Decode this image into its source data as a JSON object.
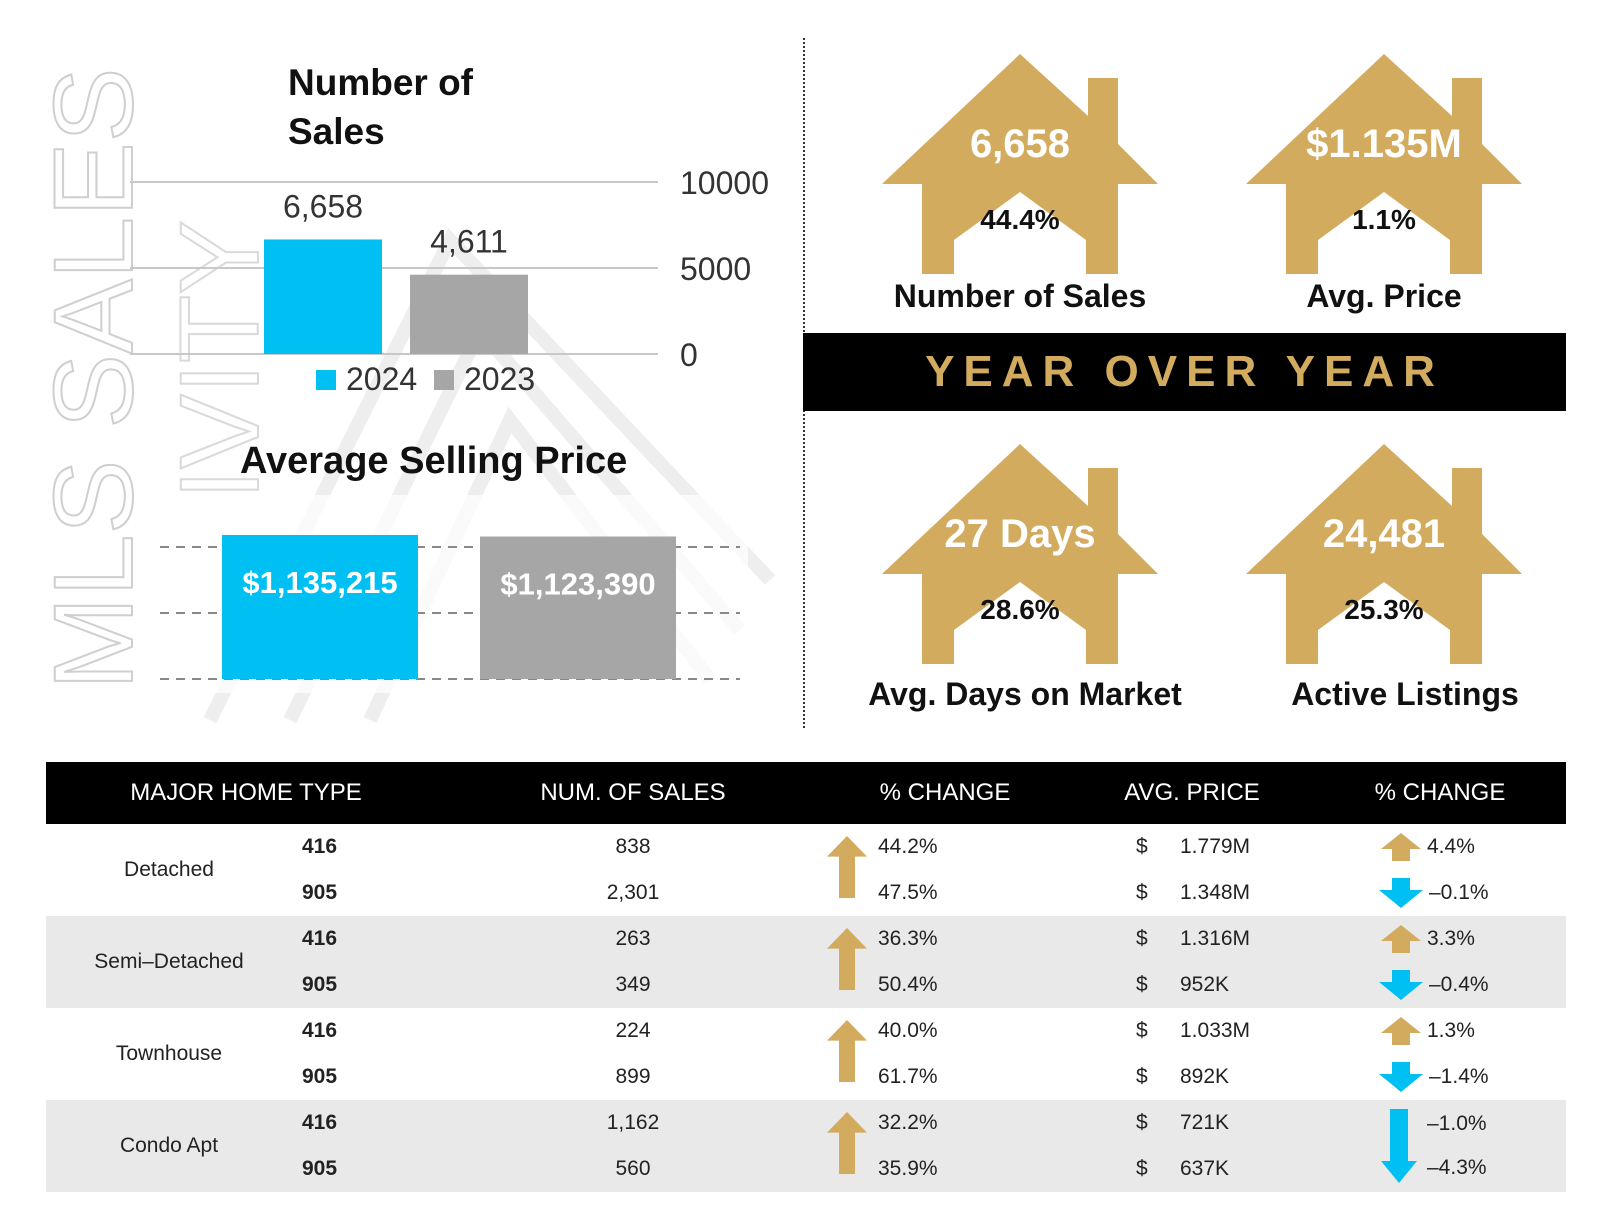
{
  "watermark": {
    "text": "MLS SALES",
    "subtext": "IVITY"
  },
  "chart_data": [
    {
      "type": "bar",
      "title": "Number of Sales",
      "categories": [
        "2024",
        "2023"
      ],
      "values": [
        6658,
        4611
      ],
      "data_labels": [
        "6,658",
        "4,611"
      ],
      "ylim": [
        0,
        10000
      ],
      "yticks": [
        "0",
        "5000",
        "10000"
      ],
      "legend": [
        "2024",
        "2023"
      ],
      "legend_position": "bottom",
      "grid": true,
      "colors": [
        "#00bff3",
        "#a6a6a6"
      ]
    },
    {
      "type": "bar",
      "title": "Average Selling Price",
      "categories": [
        "2024",
        "2023"
      ],
      "values": [
        1135215,
        1123390
      ],
      "data_labels": [
        "$1,135,215",
        "$1,123,390"
      ],
      "grid": true,
      "colors": [
        "#00bff3",
        "#a6a6a6"
      ]
    }
  ],
  "banner": "YEAR OVER YEAR",
  "colors": {
    "gold": "#d2ab5e",
    "cyan": "#00bff3",
    "gray": "#a6a6a6"
  },
  "houses": [
    {
      "value": "6,658",
      "pct": "44.4%",
      "label": "Number of Sales"
    },
    {
      "value": "$1.135M",
      "pct": "1.1%",
      "label": "Avg. Price"
    },
    {
      "value": "27 Days",
      "pct": "28.6%",
      "label": "Avg. Days on Market"
    },
    {
      "value": "24,481",
      "pct": "25.3%",
      "label": "Active Listings"
    }
  ],
  "table": {
    "headers": [
      "MAJOR HOME TYPE",
      "NUM. OF SALES",
      "% CHANGE",
      "AVG. PRICE",
      "% CHANGE"
    ],
    "currency": "$",
    "groups": [
      {
        "type": "Detached",
        "sales_dir": "up",
        "rows": [
          {
            "region": "416",
            "sales": "838",
            "sales_change": "44.2%",
            "price": "1.779M",
            "price_change": "4.4%",
            "price_dir": "up"
          },
          {
            "region": "905",
            "sales": "2,301",
            "sales_change": "47.5%",
            "price": "1.348M",
            "price_change": "–0.1%",
            "price_dir": "down"
          }
        ]
      },
      {
        "type": "Semi–Detached",
        "sales_dir": "up",
        "rows": [
          {
            "region": "416",
            "sales": "263",
            "sales_change": "36.3%",
            "price": "1.316M",
            "price_change": "3.3%",
            "price_dir": "up"
          },
          {
            "region": "905",
            "sales": "349",
            "sales_change": "50.4%",
            "price": "952K",
            "price_change": "–0.4%",
            "price_dir": "down"
          }
        ]
      },
      {
        "type": "Townhouse",
        "sales_dir": "up",
        "rows": [
          {
            "region": "416",
            "sales": "224",
            "sales_change": "40.0%",
            "price": "1.033M",
            "price_change": "1.3%",
            "price_dir": "up"
          },
          {
            "region": "905",
            "sales": "899",
            "sales_change": "61.7%",
            "price": "892K",
            "price_change": "–1.4%",
            "price_dir": "down"
          }
        ]
      },
      {
        "type": "Condo Apt",
        "sales_dir": "up",
        "price_dir_group": "down",
        "rows": [
          {
            "region": "416",
            "sales": "1,162",
            "sales_change": "32.2%",
            "price": "721K",
            "price_change": "–1.0%",
            "price_dir": "group-down"
          },
          {
            "region": "905",
            "sales": "560",
            "sales_change": "35.9%",
            "price": "637K",
            "price_change": "–4.3%",
            "price_dir": "group-down"
          }
        ]
      }
    ]
  }
}
